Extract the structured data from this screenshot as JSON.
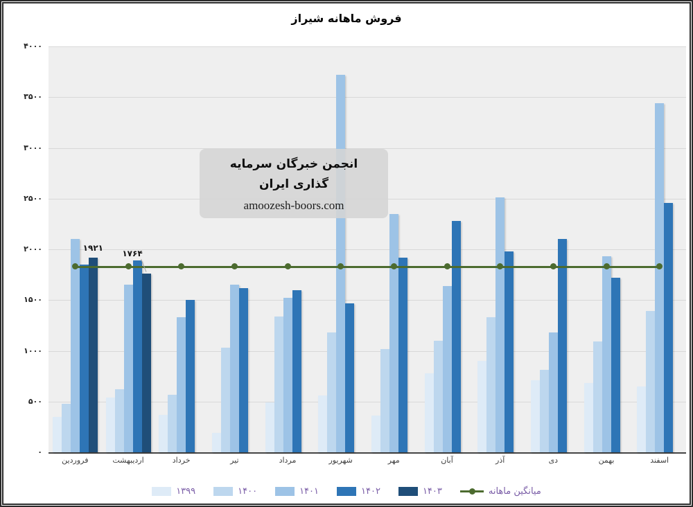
{
  "title": "فروش ماهانه شیراز",
  "watermark": {
    "line1": "انجمن خبرگان سرمایه گذاری ایران",
    "line2": "amoozesh-boors.com"
  },
  "colors": {
    "plot_background": "#efefef",
    "gridline": "#d8d8d8",
    "average_line": "#4c6b2f",
    "legend_text": "#7a5da7",
    "frame_border": "#2b2b2b"
  },
  "chart_data": {
    "type": "bar",
    "title": "فروش ماهانه شیراز",
    "categories": [
      "فروردین",
      "اردیبهشت",
      "خرداد",
      "تیر",
      "مرداد",
      "شهریور",
      "مهر",
      "آبان",
      "آذر",
      "دی",
      "بهمن",
      "اسفند"
    ],
    "series": [
      {
        "name": "۱۳۹۹",
        "color": "#DEEBF7",
        "values": [
          350,
          540,
          370,
          190,
          490,
          560,
          360,
          780,
          900,
          710,
          680,
          650
        ]
      },
      {
        "name": "۱۴۰۰",
        "color": "#BDD7EE",
        "values": [
          480,
          620,
          570,
          1030,
          1340,
          1180,
          1020,
          1100,
          1330,
          810,
          1090,
          1390
        ]
      },
      {
        "name": "۱۴۰۱",
        "color": "#9DC3E6",
        "values": [
          2100,
          1650,
          1330,
          1650,
          1520,
          3720,
          2350,
          1640,
          2510,
          1180,
          1930,
          3440
        ]
      },
      {
        "name": "۱۴۰۲",
        "color": "#2E75B6",
        "values": [
          1850,
          1890,
          1500,
          1620,
          1600,
          1470,
          1920,
          2280,
          1980,
          2100,
          1720,
          2460
        ]
      },
      {
        "name": "۱۴۰۳",
        "color": "#1F4E79",
        "values": [
          1921,
          1764,
          null,
          null,
          null,
          null,
          null,
          null,
          null,
          null,
          null,
          null
        ]
      }
    ],
    "line_series": {
      "name": "میانگین ماهانه",
      "color": "#4c6b2f",
      "value": 1830
    },
    "annotations": [
      {
        "text": "۱۹۲۱",
        "month": 0,
        "series": 4,
        "value": 1921,
        "leader": false
      },
      {
        "text": "۱۷۶۴",
        "month": 1,
        "series": 4,
        "value": 1764,
        "leader": true
      }
    ],
    "ylim": [
      0,
      4000
    ],
    "ytick_step": 500,
    "yticklabels": [
      "۰",
      "۵۰۰",
      "۱۰۰۰",
      "۱۵۰۰",
      "۲۰۰۰",
      "۲۵۰۰",
      "۳۰۰۰",
      "۳۵۰۰",
      "۴۰۰۰"
    ],
    "grid": true,
    "legend_position": "bottom"
  }
}
